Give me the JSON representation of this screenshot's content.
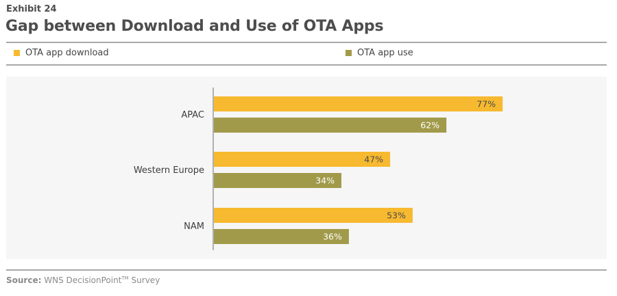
{
  "header": {
    "exhibit": "Exhibit 24",
    "title": "Gap between Download and Use of OTA Apps"
  },
  "footer": {
    "source_label": "Source:",
    "source_text": "WNS DecisionPoint",
    "trademark": "TM",
    "source_suffix": "Survey"
  },
  "colors": {
    "download": "#f7b92f",
    "use": "#a19a4a",
    "axis": "#b0b0b0"
  },
  "chart_data": {
    "type": "bar",
    "orientation": "horizontal",
    "title": "Gap between Download and Use of OTA Apps",
    "categories": [
      "APAC",
      "Western Europe",
      "NAM"
    ],
    "series": [
      {
        "name": "OTA app download",
        "values": [
          77,
          47,
          53
        ],
        "labels": [
          "77%",
          "47%",
          "53%"
        ]
      },
      {
        "name": "OTA app use",
        "values": [
          62,
          34,
          36
        ],
        "labels": [
          "62%",
          "34%",
          "36%"
        ]
      }
    ],
    "xlim": [
      0,
      100
    ],
    "xlabel": "",
    "ylabel": "",
    "grid": false,
    "legend": "top"
  }
}
